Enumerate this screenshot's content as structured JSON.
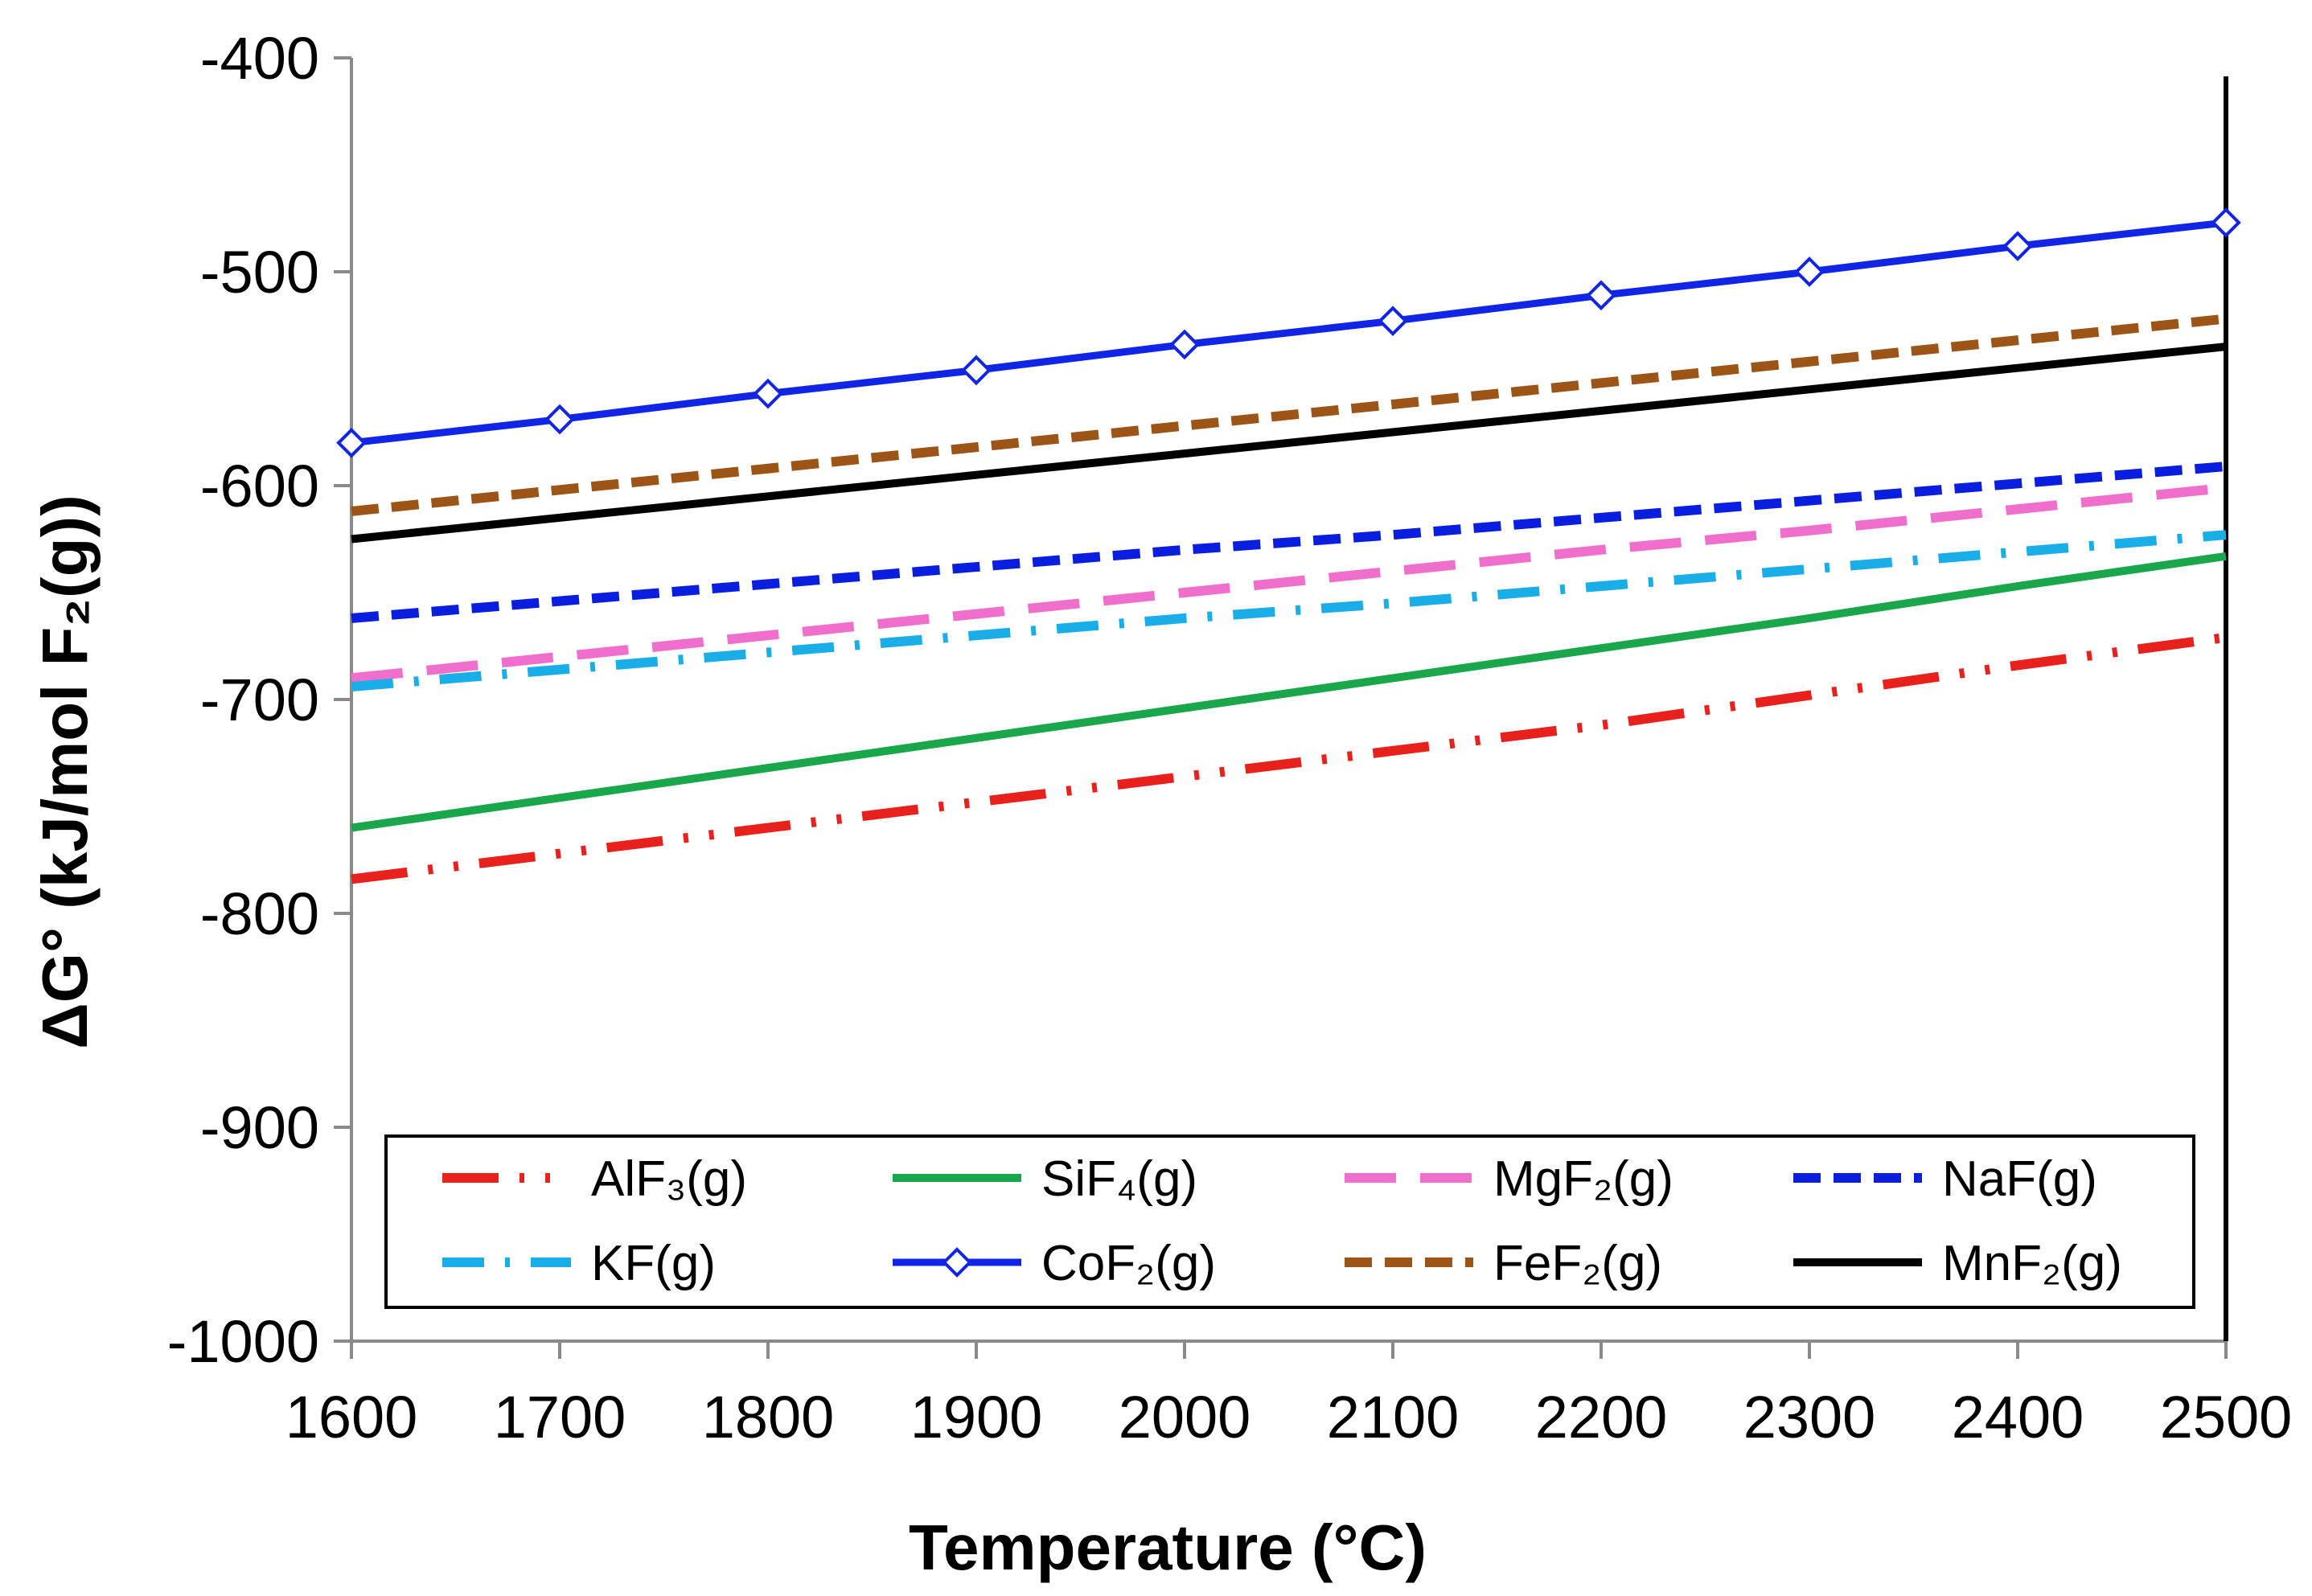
{
  "chart_data": {
    "type": "line",
    "title": "",
    "xlabel": "Temperature (°C)",
    "ylabel": "ΔG° (kJ/mol F₂(g))",
    "xlim": [
      1600,
      2500
    ],
    "ylim": [
      -1000,
      -400
    ],
    "x_ticks": [
      "1600",
      "1700",
      "1800",
      "1900",
      "2000",
      "2100",
      "2200",
      "2300",
      "2400",
      "2500"
    ],
    "y_ticks": [
      "-400",
      "-500",
      "-600",
      "-700",
      "-800",
      "-900",
      "-1000"
    ],
    "x": [
      1600,
      1700,
      1800,
      1900,
      2000,
      2100,
      2200,
      2300,
      2400,
      2500
    ],
    "legend_position": "bottom-inside",
    "series": [
      {
        "name": "AlF₃(g)",
        "color": "#e8211d",
        "style": "dash-dot-dot",
        "values": [
          -784,
          -772,
          -760,
          -748,
          -736,
          -724,
          -712,
          -698,
          -684,
          -671
        ]
      },
      {
        "name": "SiF₄(g)",
        "color": "#1aa64b",
        "style": "solid",
        "values": [
          -760,
          -746,
          -732,
          -718,
          -704,
          -690,
          -676,
          -662,
          -647,
          -633
        ]
      },
      {
        "name": "MgF₂(g)",
        "color": "#f06ecc",
        "style": "long-dash",
        "values": [
          -690,
          -680,
          -670,
          -660,
          -650,
          -640,
          -630,
          -621,
          -611,
          -601
        ]
      },
      {
        "name": "NaF(g)",
        "color": "#0a1ee0",
        "style": "dash",
        "values": [
          -662,
          -654,
          -646,
          -638,
          -630,
          -623,
          -615,
          -607,
          -599,
          -591
        ]
      },
      {
        "name": "KF(g)",
        "color": "#1aaee8",
        "style": "dash-dot",
        "values": [
          -694,
          -686,
          -678,
          -670,
          -662,
          -655,
          -647,
          -639,
          -631,
          -623
        ]
      },
      {
        "name": "CoF₂(g)",
        "color": "#1025e6",
        "style": "solid-diamond",
        "values": [
          -580,
          -569,
          -557,
          -546,
          -534,
          -523,
          -511,
          -500,
          -488,
          -477
        ]
      },
      {
        "name": "FeF₂(g)",
        "color": "#9c5417",
        "style": "dash",
        "values": [
          -612,
          -602,
          -592,
          -582,
          -572,
          -562,
          -552,
          -542,
          -532,
          -522
        ]
      },
      {
        "name": "MnF₂(g)",
        "color": "#000000",
        "style": "solid",
        "values": [
          -625,
          -615,
          -605,
          -595,
          -585,
          -575,
          -565,
          -555,
          -545,
          -535
        ]
      }
    ]
  }
}
